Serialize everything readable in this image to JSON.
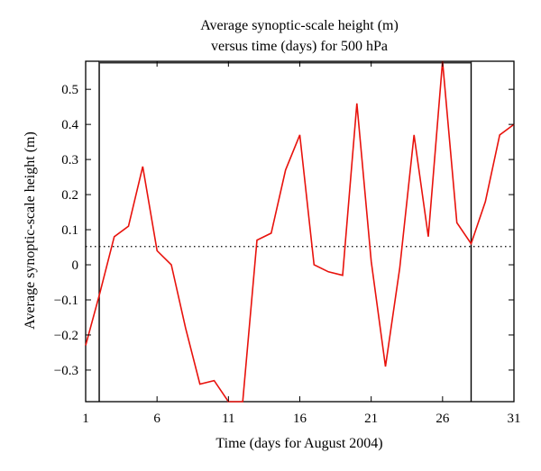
{
  "chart_data": {
    "type": "line",
    "title": [
      "Average synoptic-scale height (m)",
      "versus time (days) for 500 hPa"
    ],
    "xlabel": "Time (days for August 2004)",
    "ylabel": "Average synoptic-scale height (m)",
    "xlim": [
      1,
      31
    ],
    "ylim": [
      -0.39,
      0.58
    ],
    "xticks": [
      1,
      6,
      11,
      16,
      21,
      26,
      31
    ],
    "yticks": [
      0.5,
      0.4,
      0.3,
      0.2,
      0.1,
      0,
      -0.1,
      -0.2,
      -0.3
    ],
    "ytick_labels": [
      "0.5",
      "0.4",
      "0.3",
      "0.2",
      "0.1",
      "0",
      "−0.1",
      "−0.2",
      "−0.3"
    ],
    "grid": false,
    "reference_line": {
      "y": 0.052,
      "style": "dotted",
      "color": "#000000"
    },
    "vertical_lines": [
      1.95,
      28.0
    ],
    "top_box_edge": {
      "x_start": 1.95,
      "x_end": 28.0,
      "y": 0.58
    },
    "series": [
      {
        "color": "#e8120c",
        "x": [
          1,
          2,
          3,
          4,
          5,
          6,
          7,
          8,
          9,
          10,
          11,
          12,
          13,
          14,
          15,
          16,
          17,
          18,
          19,
          20,
          21,
          22,
          23,
          24,
          25,
          26,
          27,
          28,
          29,
          30,
          31
        ],
        "y": [
          -0.23,
          -0.08,
          0.08,
          0.11,
          0.28,
          0.04,
          0.0,
          -0.18,
          -0.34,
          -0.33,
          -0.39,
          -0.395,
          0.07,
          0.09,
          0.27,
          0.37,
          0.0,
          -0.02,
          -0.03,
          0.46,
          0.01,
          -0.29,
          -0.01,
          0.37,
          0.08,
          0.58,
          0.12,
          0.06,
          0.18,
          0.37,
          0.4
        ]
      }
    ]
  }
}
